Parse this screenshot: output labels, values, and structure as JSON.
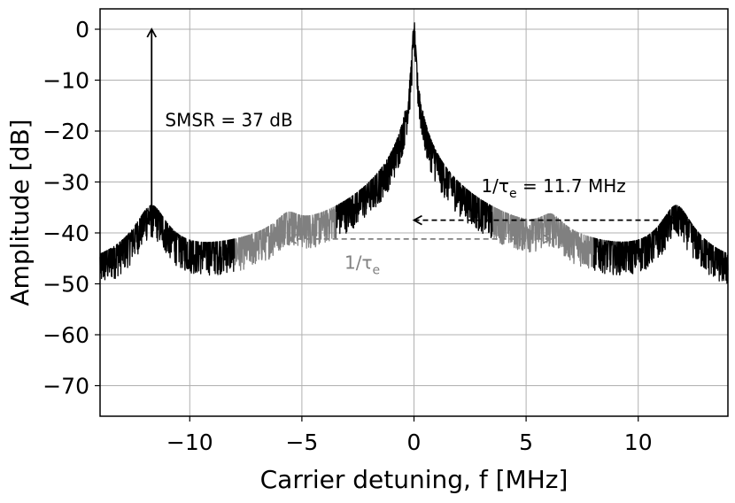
{
  "chart_data": {
    "type": "line",
    "title": "",
    "xlabel": "Carrier detuning, f [MHz]",
    "ylabel": "Amplitude [dB]",
    "xlim": [
      -14,
      14
    ],
    "ylim": [
      -76,
      4
    ],
    "grid": true,
    "x_ticks": [
      -10,
      -5,
      0,
      5,
      10
    ],
    "x_tick_labels": [
      "−10",
      "−5",
      "0",
      "5",
      "10"
    ],
    "y_ticks": [
      0,
      -10,
      -20,
      -30,
      -40,
      -50,
      -60,
      -70
    ],
    "y_tick_labels": [
      "0",
      "−10",
      "−20",
      "−30",
      "−40",
      "−50",
      "−60",
      "−70"
    ],
    "noise_floor_db": -65,
    "series": [
      {
        "color": "#000000",
        "peaks": [
          {
            "f": -11.7,
            "amplitude": -37
          },
          {
            "f": 0,
            "amplitude": 0
          },
          {
            "f": 11.7,
            "amplitude": -37
          }
        ],
        "segments": [
          [
            -14,
            -8
          ],
          [
            -3.5,
            3.5
          ],
          [
            8,
            14
          ]
        ]
      },
      {
        "color": "#808080",
        "peaks": [
          {
            "f": -5.6,
            "amplitude": -41
          },
          {
            "f": 6.1,
            "amplitude": -41
          }
        ],
        "segments": [
          [
            -8,
            -3.5
          ],
          [
            3.5,
            8
          ]
        ]
      }
    ],
    "annotations": [
      {
        "text": "SMSR = 37 dB",
        "color": "#000000",
        "arrow": {
          "from": [
            -11.7,
            0
          ],
          "to": [
            -11.7,
            -37
          ],
          "style": "solid",
          "heads": "both"
        },
        "text_pos": [
          -11.1,
          -19
        ]
      },
      {
        "text": "1/τ",
        "subscript": "e",
        "suffix": " = 11.7 MHz",
        "color": "#000000",
        "arrow": {
          "from": [
            0,
            -37.5
          ],
          "to": [
            11.7,
            -37.5
          ],
          "style": "dashed",
          "heads": "both"
        },
        "text_pos": [
          3,
          -32
        ]
      },
      {
        "text": "1/τ",
        "subscript": "e",
        "suffix": "",
        "color": "#808080",
        "arrow": {
          "from": [
            -5.6,
            -41.2
          ],
          "to": [
            6.1,
            -41.2
          ],
          "style": "dashed",
          "heads": "both"
        },
        "text_pos": [
          -3.1,
          -47
        ]
      }
    ]
  }
}
